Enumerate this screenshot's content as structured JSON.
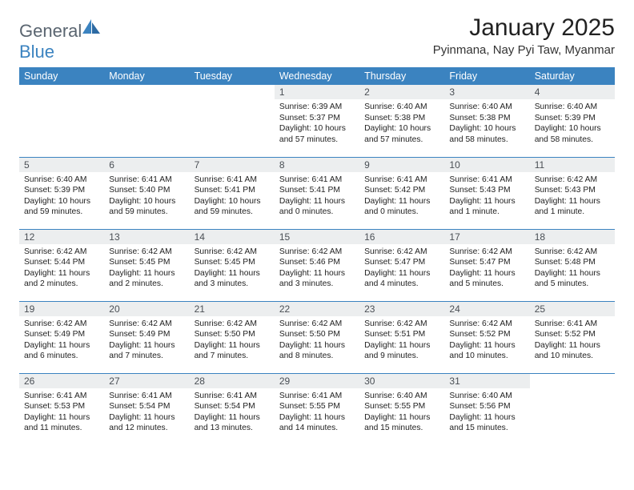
{
  "brand": {
    "word1": "General",
    "word2": "Blue"
  },
  "title": "January 2025",
  "location": "Pyinmana, Nay Pyi Taw, Myanmar",
  "colors": {
    "header_bg": "#3b83c0",
    "header_text": "#ffffff",
    "daynum_bg": "#eceeef",
    "daynum_text": "#4a4f55",
    "rule": "#3b83c0",
    "logo_gray": "#5a6570",
    "logo_blue": "#3b83c0"
  },
  "day_headers": [
    "Sunday",
    "Monday",
    "Tuesday",
    "Wednesday",
    "Thursday",
    "Friday",
    "Saturday"
  ],
  "weeks": [
    [
      {
        "empty": true
      },
      {
        "empty": true
      },
      {
        "empty": true
      },
      {
        "n": "1",
        "sr": "6:39 AM",
        "ss": "5:37 PM",
        "dl": "10 hours and 57 minutes."
      },
      {
        "n": "2",
        "sr": "6:40 AM",
        "ss": "5:38 PM",
        "dl": "10 hours and 57 minutes."
      },
      {
        "n": "3",
        "sr": "6:40 AM",
        "ss": "5:38 PM",
        "dl": "10 hours and 58 minutes."
      },
      {
        "n": "4",
        "sr": "6:40 AM",
        "ss": "5:39 PM",
        "dl": "10 hours and 58 minutes."
      }
    ],
    [
      {
        "n": "5",
        "sr": "6:40 AM",
        "ss": "5:39 PM",
        "dl": "10 hours and 59 minutes."
      },
      {
        "n": "6",
        "sr": "6:41 AM",
        "ss": "5:40 PM",
        "dl": "10 hours and 59 minutes."
      },
      {
        "n": "7",
        "sr": "6:41 AM",
        "ss": "5:41 PM",
        "dl": "10 hours and 59 minutes."
      },
      {
        "n": "8",
        "sr": "6:41 AM",
        "ss": "5:41 PM",
        "dl": "11 hours and 0 minutes."
      },
      {
        "n": "9",
        "sr": "6:41 AM",
        "ss": "5:42 PM",
        "dl": "11 hours and 0 minutes."
      },
      {
        "n": "10",
        "sr": "6:41 AM",
        "ss": "5:43 PM",
        "dl": "11 hours and 1 minute."
      },
      {
        "n": "11",
        "sr": "6:42 AM",
        "ss": "5:43 PM",
        "dl": "11 hours and 1 minute."
      }
    ],
    [
      {
        "n": "12",
        "sr": "6:42 AM",
        "ss": "5:44 PM",
        "dl": "11 hours and 2 minutes."
      },
      {
        "n": "13",
        "sr": "6:42 AM",
        "ss": "5:45 PM",
        "dl": "11 hours and 2 minutes."
      },
      {
        "n": "14",
        "sr": "6:42 AM",
        "ss": "5:45 PM",
        "dl": "11 hours and 3 minutes."
      },
      {
        "n": "15",
        "sr": "6:42 AM",
        "ss": "5:46 PM",
        "dl": "11 hours and 3 minutes."
      },
      {
        "n": "16",
        "sr": "6:42 AM",
        "ss": "5:47 PM",
        "dl": "11 hours and 4 minutes."
      },
      {
        "n": "17",
        "sr": "6:42 AM",
        "ss": "5:47 PM",
        "dl": "11 hours and 5 minutes."
      },
      {
        "n": "18",
        "sr": "6:42 AM",
        "ss": "5:48 PM",
        "dl": "11 hours and 5 minutes."
      }
    ],
    [
      {
        "n": "19",
        "sr": "6:42 AM",
        "ss": "5:49 PM",
        "dl": "11 hours and 6 minutes."
      },
      {
        "n": "20",
        "sr": "6:42 AM",
        "ss": "5:49 PM",
        "dl": "11 hours and 7 minutes."
      },
      {
        "n": "21",
        "sr": "6:42 AM",
        "ss": "5:50 PM",
        "dl": "11 hours and 7 minutes."
      },
      {
        "n": "22",
        "sr": "6:42 AM",
        "ss": "5:50 PM",
        "dl": "11 hours and 8 minutes."
      },
      {
        "n": "23",
        "sr": "6:42 AM",
        "ss": "5:51 PM",
        "dl": "11 hours and 9 minutes."
      },
      {
        "n": "24",
        "sr": "6:42 AM",
        "ss": "5:52 PM",
        "dl": "11 hours and 10 minutes."
      },
      {
        "n": "25",
        "sr": "6:41 AM",
        "ss": "5:52 PM",
        "dl": "11 hours and 10 minutes."
      }
    ],
    [
      {
        "n": "26",
        "sr": "6:41 AM",
        "ss": "5:53 PM",
        "dl": "11 hours and 11 minutes."
      },
      {
        "n": "27",
        "sr": "6:41 AM",
        "ss": "5:54 PM",
        "dl": "11 hours and 12 minutes."
      },
      {
        "n": "28",
        "sr": "6:41 AM",
        "ss": "5:54 PM",
        "dl": "11 hours and 13 minutes."
      },
      {
        "n": "29",
        "sr": "6:41 AM",
        "ss": "5:55 PM",
        "dl": "11 hours and 14 minutes."
      },
      {
        "n": "30",
        "sr": "6:40 AM",
        "ss": "5:55 PM",
        "dl": "11 hours and 15 minutes."
      },
      {
        "n": "31",
        "sr": "6:40 AM",
        "ss": "5:56 PM",
        "dl": "11 hours and 15 minutes."
      },
      {
        "empty": true
      }
    ]
  ],
  "labels": {
    "sunrise": "Sunrise:",
    "sunset": "Sunset:",
    "daylight": "Daylight:"
  },
  "typography": {
    "title_fontsize": 30,
    "location_fontsize": 15,
    "header_fontsize": 12.5,
    "cell_fontsize": 10.3
  }
}
